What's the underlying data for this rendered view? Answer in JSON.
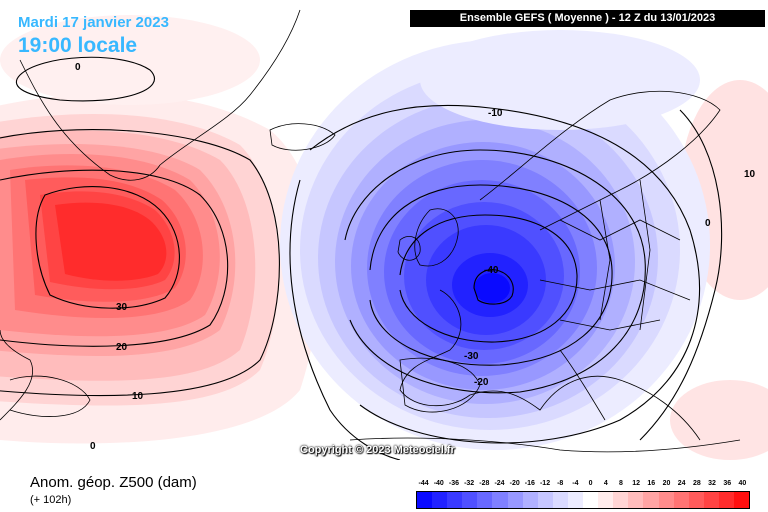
{
  "header": {
    "date_title": "Mardi 17 janvier 2023",
    "time_title": "19:00 locale",
    "run_banner": "Ensemble GEFS  ( Moyenne )  -  12 Z du 13/01/2023"
  },
  "map": {
    "copyright": "Copyright © 2023 Meteociel.fr",
    "contour_labels": [
      "0",
      "30",
      "20",
      "10",
      "0",
      "-10",
      "-40",
      "-30",
      "-20",
      "0",
      "10"
    ]
  },
  "footer": {
    "parameter_label": "Anom. géop. Z500 (dam)",
    "lead_time": "(+ 102h)"
  },
  "legend": {
    "tick_labels": [
      "-44",
      "-40",
      "-36",
      "-32",
      "-28",
      "-24",
      "-20",
      "-16",
      "-12",
      "-8",
      "-4",
      "0",
      "4",
      "8",
      "12",
      "16",
      "20",
      "24",
      "28",
      "32",
      "36",
      "40"
    ],
    "colors": [
      "#0a0aff",
      "#2222ff",
      "#3a3aff",
      "#5050ff",
      "#6868ff",
      "#8080ff",
      "#9898ff",
      "#b0b0ff",
      "#c6c6ff",
      "#dadaff",
      "#ececff",
      "#ffffff",
      "#ffecec",
      "#ffd4d4",
      "#ffbcbc",
      "#ffa4a4",
      "#ff8c8c",
      "#ff7474",
      "#ff5c5c",
      "#ff4444",
      "#ff2c2c",
      "#ff1010"
    ]
  },
  "colors": {
    "title_blue": "#38b8ff",
    "banner_bg": "#000000"
  }
}
